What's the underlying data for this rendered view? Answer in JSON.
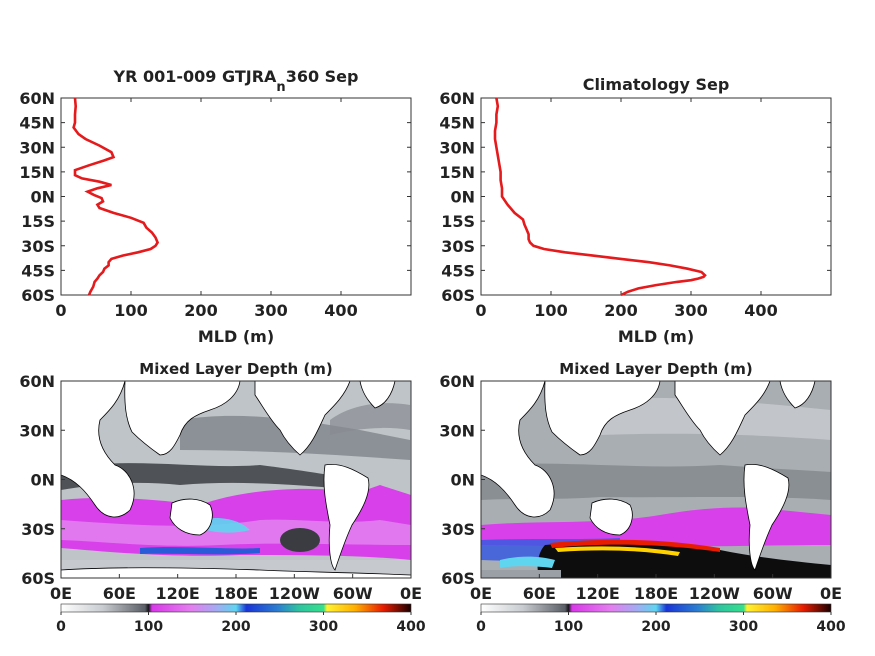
{
  "chart_data": [
    {
      "type": "line",
      "title": "YR 001-009 GTJRA",
      "title_sub": "n",
      "title_tail": "360 Sep",
      "xlabel": "MLD (m)",
      "xlim": [
        0,
        500
      ],
      "xticks": [
        "0",
        "100",
        "200",
        "300",
        "400"
      ],
      "ylim": [
        -60,
        60
      ],
      "yticks": [
        "60N",
        "45N",
        "30N",
        "15N",
        "0N",
        "15S",
        "30S",
        "45S",
        "60S"
      ],
      "series": [
        {
          "color": "#e41a1c",
          "lat": [
            60,
            55,
            50,
            45,
            42,
            38,
            35,
            31,
            27,
            24,
            22,
            19,
            16,
            13,
            11,
            9,
            7,
            5,
            3,
            1,
            -1,
            -3,
            -5,
            -7,
            -10,
            -13,
            -16,
            -19,
            -22,
            -25,
            -28,
            -30,
            -32,
            -34,
            -36,
            -38,
            -40,
            -42,
            -44,
            -46,
            -48,
            -50,
            -52,
            -55,
            -58,
            -60
          ],
          "mld": [
            20,
            21,
            20,
            20,
            18,
            25,
            35,
            55,
            72,
            75,
            62,
            40,
            20,
            20,
            30,
            55,
            72,
            52,
            38,
            47,
            58,
            60,
            52,
            55,
            75,
            100,
            118,
            122,
            130,
            135,
            138,
            135,
            128,
            110,
            88,
            72,
            68,
            68,
            62,
            60,
            55,
            52,
            48,
            46,
            42,
            40
          ]
        }
      ]
    },
    {
      "type": "line",
      "title": "Climatology Sep",
      "xlabel": "MLD (m)",
      "xlim": [
        0,
        500
      ],
      "xticks": [
        "0",
        "100",
        "200",
        "300",
        "400"
      ],
      "ylim": [
        -60,
        60
      ],
      "yticks": [
        "60N",
        "45N",
        "30N",
        "15N",
        "0N",
        "15S",
        "30S",
        "45S",
        "60S"
      ],
      "series": [
        {
          "color": "#e41a1c",
          "lat": [
            60,
            55,
            50,
            45,
            40,
            35,
            30,
            25,
            20,
            15,
            10,
            5,
            0,
            -5,
            -10,
            -14,
            -17,
            -20,
            -23,
            -26,
            -28,
            -30,
            -32,
            -34,
            -36,
            -38,
            -40,
            -42,
            -44,
            -46,
            -48,
            -49,
            -50,
            -51,
            -52,
            -54,
            -56,
            -58,
            -60
          ],
          "mld": [
            22,
            24,
            22,
            22,
            20,
            20,
            22,
            24,
            26,
            28,
            28,
            30,
            30,
            38,
            48,
            60,
            62,
            65,
            68,
            68,
            70,
            75,
            90,
            120,
            160,
            200,
            240,
            270,
            295,
            315,
            320,
            318,
            310,
            300,
            280,
            250,
            225,
            210,
            200
          ]
        }
      ]
    },
    {
      "type": "heatmap",
      "title": "Mixed Layer Depth (m)",
      "xticks": [
        "0E",
        "60E",
        "120E",
        "180E",
        "120W",
        "60W",
        "0E"
      ],
      "yticks": [
        "60N",
        "30N",
        "0N",
        "30S",
        "60S"
      ],
      "colorbar": {
        "ticks": [
          "0",
          "100",
          "200",
          "300",
          "400"
        ],
        "range": [
          0,
          400
        ]
      }
    },
    {
      "type": "heatmap",
      "title": "Mixed Layer Depth (m)",
      "xticks": [
        "0E",
        "60E",
        "120E",
        "180E",
        "120W",
        "60W",
        "0E"
      ],
      "yticks": [
        "60N",
        "30N",
        "0N",
        "30S",
        "60S"
      ],
      "colorbar": {
        "ticks": [
          "0",
          "100",
          "200",
          "300",
          "400"
        ],
        "range": [
          0,
          400
        ]
      }
    }
  ]
}
